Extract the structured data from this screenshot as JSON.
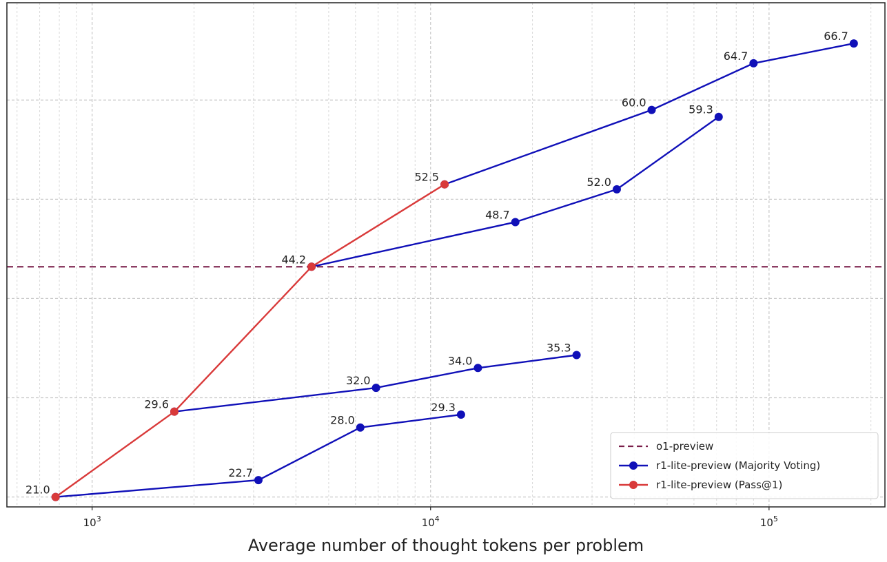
{
  "chart_data": {
    "type": "line",
    "xlabel": "Average number of thought tokens per problem",
    "ylabel": "",
    "x_scale": "log",
    "xlim": [
      560,
      220000
    ],
    "ylim": [
      20,
      70.8
    ],
    "x_ticks": [
      {
        "value": 1000,
        "base": "10",
        "exp": "3"
      },
      {
        "value": 10000,
        "base": "10",
        "exp": "4"
      },
      {
        "value": 100000,
        "base": "10",
        "exp": "5"
      }
    ],
    "y_gridlines": [
      21,
      31,
      41,
      51,
      61
    ],
    "grid": true,
    "legend_position": "lower-right",
    "reference_lines": [
      {
        "name": "o1-preview",
        "y": 44.2,
        "color": "#7a1f4a",
        "style": "dashed"
      }
    ],
    "series": [
      {
        "name": "r1-lite-preview (Majority Voting)",
        "color": "#1010b8",
        "segments": [
          {
            "points": [
              {
                "x": 780,
                "y": 21.0
              },
              {
                "x": 3100,
                "y": 22.7
              },
              {
                "x": 6200,
                "y": 28.0
              },
              {
                "x": 12300,
                "y": 29.3
              }
            ]
          },
          {
            "points": [
              {
                "x": 1750,
                "y": 29.6
              },
              {
                "x": 6900,
                "y": 32.0
              },
              {
                "x": 13800,
                "y": 34.0
              },
              {
                "x": 27000,
                "y": 35.3
              }
            ]
          },
          {
            "points": [
              {
                "x": 4450,
                "y": 44.2
              },
              {
                "x": 17800,
                "y": 48.7
              },
              {
                "x": 35500,
                "y": 52.0
              },
              {
                "x": 71000,
                "y": 59.3
              }
            ]
          },
          {
            "points": [
              {
                "x": 11000,
                "y": 52.5
              },
              {
                "x": 45000,
                "y": 60.0
              },
              {
                "x": 90000,
                "y": 64.7
              },
              {
                "x": 178000,
                "y": 66.7
              }
            ]
          }
        ]
      },
      {
        "name": "r1-lite-preview (Pass@1)",
        "color": "#d93a3a",
        "segments": [
          {
            "points": [
              {
                "x": 780,
                "y": 21.0
              },
              {
                "x": 1750,
                "y": 29.6
              },
              {
                "x": 4450,
                "y": 44.2
              },
              {
                "x": 11000,
                "y": 52.5
              }
            ]
          }
        ]
      }
    ],
    "data_labels": [
      {
        "text": "21.0",
        "x": 780,
        "y": 21.0
      },
      {
        "text": "22.7",
        "x": 3100,
        "y": 22.7
      },
      {
        "text": "28.0",
        "x": 6200,
        "y": 28.0
      },
      {
        "text": "29.3",
        "x": 12300,
        "y": 29.3
      },
      {
        "text": "29.6",
        "x": 1750,
        "y": 29.6
      },
      {
        "text": "32.0",
        "x": 6900,
        "y": 32.0
      },
      {
        "text": "34.0",
        "x": 13800,
        "y": 34.0
      },
      {
        "text": "35.3",
        "x": 27000,
        "y": 35.3
      },
      {
        "text": "44.2",
        "x": 4450,
        "y": 44.2
      },
      {
        "text": "48.7",
        "x": 17800,
        "y": 48.7
      },
      {
        "text": "52.0",
        "x": 35500,
        "y": 52.0
      },
      {
        "text": "59.3",
        "x": 71000,
        "y": 59.3
      },
      {
        "text": "52.5",
        "x": 11000,
        "y": 52.5
      },
      {
        "text": "60.0",
        "x": 45000,
        "y": 60.0
      },
      {
        "text": "64.7",
        "x": 90000,
        "y": 64.7
      },
      {
        "text": "66.7",
        "x": 178000,
        "y": 66.7
      }
    ],
    "legend": [
      {
        "label": "o1-preview",
        "style": "dashed",
        "color": "#7a1f4a"
      },
      {
        "label": "r1-lite-preview (Majority Voting)",
        "style": "line-marker",
        "color": "#1010b8"
      },
      {
        "label": "r1-lite-preview (Pass@1)",
        "style": "line-marker",
        "color": "#d93a3a"
      }
    ]
  }
}
